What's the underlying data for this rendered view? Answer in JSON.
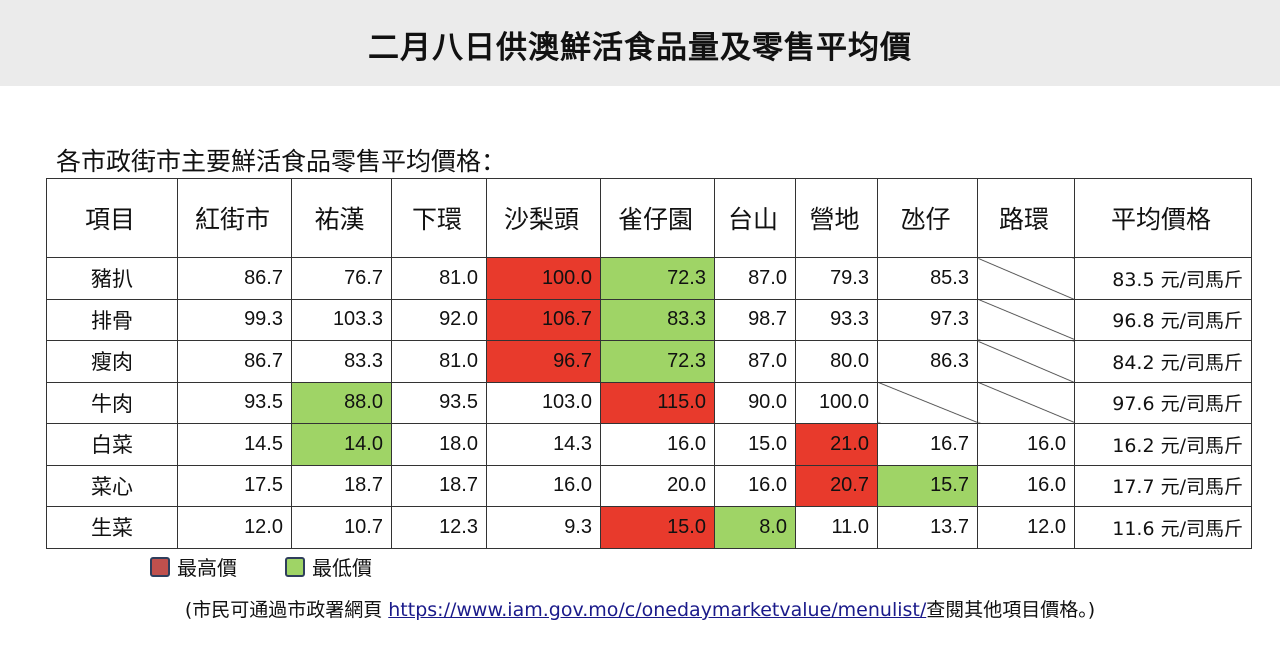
{
  "title": "二月八日供澳鮮活食品量及零售平均價",
  "section_title": "各市政街市主要鮮活食品零售平均價格：",
  "colors": {
    "highest": "#e83a2c",
    "lowest": "#9fd466",
    "title_bar": "#ebebeb"
  },
  "table": {
    "headers": [
      "項目",
      "紅街市",
      "祐漢",
      "下環",
      "沙梨頭",
      "雀仔園",
      "台山",
      "營地",
      "氹仔",
      "路環",
      "平均價格"
    ],
    "rows": [
      {
        "item": "豬扒",
        "cells": [
          {
            "v": "86.7",
            "s": ""
          },
          {
            "v": "76.7",
            "s": ""
          },
          {
            "v": "81.0",
            "s": ""
          },
          {
            "v": "100.0",
            "s": "hi"
          },
          {
            "v": "72.3",
            "s": "lo"
          },
          {
            "v": "87.0",
            "s": ""
          },
          {
            "v": "79.3",
            "s": ""
          },
          {
            "v": "85.3",
            "s": ""
          },
          {
            "v": "",
            "s": "na"
          }
        ],
        "avg": "83.5 元/司馬斤"
      },
      {
        "item": "排骨",
        "cells": [
          {
            "v": "99.3",
            "s": ""
          },
          {
            "v": "103.3",
            "s": ""
          },
          {
            "v": "92.0",
            "s": ""
          },
          {
            "v": "106.7",
            "s": "hi"
          },
          {
            "v": "83.3",
            "s": "lo"
          },
          {
            "v": "98.7",
            "s": ""
          },
          {
            "v": "93.3",
            "s": ""
          },
          {
            "v": "97.3",
            "s": ""
          },
          {
            "v": "",
            "s": "na"
          }
        ],
        "avg": "96.8 元/司馬斤"
      },
      {
        "item": "瘦肉",
        "cells": [
          {
            "v": "86.7",
            "s": ""
          },
          {
            "v": "83.3",
            "s": ""
          },
          {
            "v": "81.0",
            "s": ""
          },
          {
            "v": "96.7",
            "s": "hi"
          },
          {
            "v": "72.3",
            "s": "lo"
          },
          {
            "v": "87.0",
            "s": ""
          },
          {
            "v": "80.0",
            "s": ""
          },
          {
            "v": "86.3",
            "s": ""
          },
          {
            "v": "",
            "s": "na"
          }
        ],
        "avg": "84.2 元/司馬斤"
      },
      {
        "item": "牛肉",
        "cells": [
          {
            "v": "93.5",
            "s": ""
          },
          {
            "v": "88.0",
            "s": "lo"
          },
          {
            "v": "93.5",
            "s": ""
          },
          {
            "v": "103.0",
            "s": ""
          },
          {
            "v": "115.0",
            "s": "hi"
          },
          {
            "v": "90.0",
            "s": ""
          },
          {
            "v": "100.0",
            "s": ""
          },
          {
            "v": "",
            "s": "na"
          },
          {
            "v": "",
            "s": "na"
          }
        ],
        "avg": "97.6 元/司馬斤"
      },
      {
        "item": "白菜",
        "cells": [
          {
            "v": "14.5",
            "s": ""
          },
          {
            "v": "14.0",
            "s": "lo"
          },
          {
            "v": "18.0",
            "s": ""
          },
          {
            "v": "14.3",
            "s": ""
          },
          {
            "v": "16.0",
            "s": ""
          },
          {
            "v": "15.0",
            "s": ""
          },
          {
            "v": "21.0",
            "s": "hi"
          },
          {
            "v": "16.7",
            "s": ""
          },
          {
            "v": "16.0",
            "s": ""
          }
        ],
        "avg": "16.2 元/司馬斤"
      },
      {
        "item": "菜心",
        "cells": [
          {
            "v": "17.5",
            "s": ""
          },
          {
            "v": "18.7",
            "s": ""
          },
          {
            "v": "18.7",
            "s": ""
          },
          {
            "v": "16.0",
            "s": ""
          },
          {
            "v": "20.0",
            "s": ""
          },
          {
            "v": "16.0",
            "s": ""
          },
          {
            "v": "20.7",
            "s": "hi"
          },
          {
            "v": "15.7",
            "s": "lo"
          },
          {
            "v": "16.0",
            "s": ""
          }
        ],
        "avg": "17.7 元/司馬斤"
      },
      {
        "item": "生菜",
        "cells": [
          {
            "v": "12.0",
            "s": ""
          },
          {
            "v": "10.7",
            "s": ""
          },
          {
            "v": "12.3",
            "s": ""
          },
          {
            "v": "9.3",
            "s": ""
          },
          {
            "v": "15.0",
            "s": "hi"
          },
          {
            "v": "8.0",
            "s": "lo"
          },
          {
            "v": "11.0",
            "s": ""
          },
          {
            "v": "13.7",
            "s": ""
          },
          {
            "v": "12.0",
            "s": ""
          }
        ],
        "avg": "11.6 元/司馬斤"
      }
    ]
  },
  "legend": {
    "highest_label": "最高價",
    "lowest_label": "最低價"
  },
  "footnote": {
    "prefix": "(市民可通過市政署網頁 ",
    "link_text": "https://www.iam.gov.mo/c/onedaymarketvalue/menulist/",
    "suffix": "查閱其他項目價格。)"
  }
}
